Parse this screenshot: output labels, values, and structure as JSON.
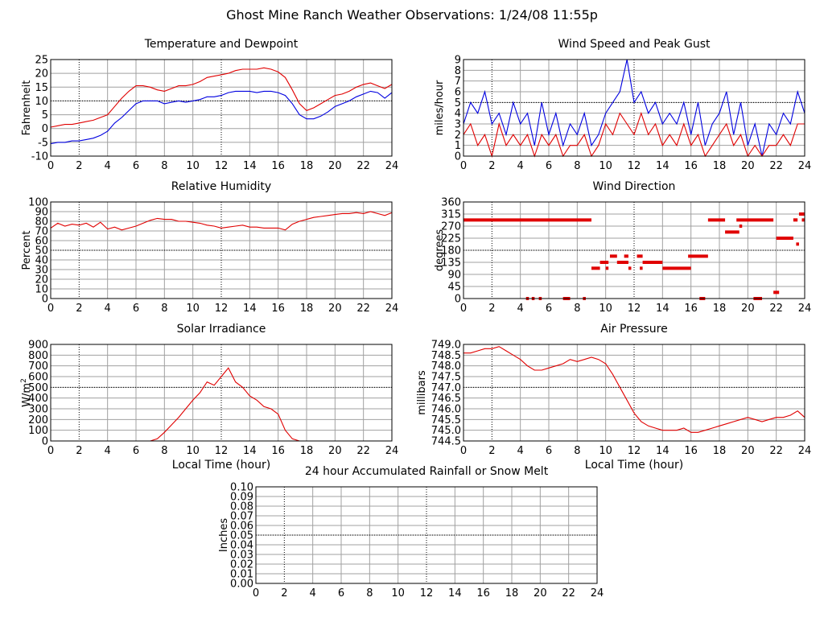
{
  "page_title": "Ghost Mine Ranch Weather Observations: 1/24/08 11:55p",
  "colors": {
    "red": "#e00000",
    "blue": "#0000e0",
    "grid": "#a0a0a0",
    "frame": "#000000"
  },
  "chart_data": [
    {
      "id": "temp",
      "type": "line",
      "title": "Temperature and Dewpoint",
      "ylabel": "Fahrenheit",
      "xlabel": "",
      "xlim": [
        0,
        24
      ],
      "ylim": [
        -10,
        25
      ],
      "xticks": [
        0,
        2,
        4,
        6,
        8,
        10,
        12,
        14,
        16,
        18,
        20,
        22,
        24
      ],
      "yticks": [
        -10,
        -5,
        0,
        5,
        10,
        15,
        20,
        25
      ],
      "ytick_labels": [
        "-10",
        "-5",
        "0",
        "5",
        "10",
        "15",
        "20",
        "25"
      ],
      "grid": true,
      "series": [
        {
          "color": "red",
          "x": [
            0,
            0.5,
            1,
            1.5,
            2,
            2.5,
            3,
            3.5,
            4,
            4.5,
            5,
            5.5,
            6,
            6.5,
            7,
            7.5,
            8,
            8.5,
            9,
            9.5,
            10,
            10.5,
            11,
            11.5,
            12,
            12.5,
            13,
            13.5,
            14,
            14.5,
            15,
            15.5,
            16,
            16.5,
            17,
            17.5,
            18,
            18.5,
            19,
            19.5,
            20,
            20.5,
            21,
            21.5,
            22,
            22.5,
            23,
            23.5,
            24
          ],
          "values": [
            0.5,
            1,
            1.5,
            1.5,
            2,
            2.5,
            3,
            4,
            5,
            8,
            11,
            13.5,
            15.5,
            15.5,
            15,
            14,
            13.5,
            14.5,
            15.5,
            15.5,
            16,
            17,
            18.5,
            19,
            19.5,
            20,
            21,
            21.5,
            21.5,
            21.5,
            22,
            21.5,
            20.5,
            18.5,
            14,
            9,
            6.5,
            7.5,
            9,
            10.5,
            12,
            12.5,
            13.5,
            15,
            16,
            16.5,
            15.5,
            14.5,
            16
          ]
        },
        {
          "color": "blue",
          "x": [
            0,
            0.5,
            1,
            1.5,
            2,
            2.5,
            3,
            3.5,
            4,
            4.5,
            5,
            5.5,
            6,
            6.5,
            7,
            7.5,
            8,
            8.5,
            9,
            9.5,
            10,
            10.5,
            11,
            11.5,
            12,
            12.5,
            13,
            13.5,
            14,
            14.5,
            15,
            15.5,
            16,
            16.5,
            17,
            17.5,
            18,
            18.5,
            19,
            19.5,
            20,
            20.5,
            21,
            21.5,
            22,
            22.5,
            23,
            23.5,
            24
          ],
          "values": [
            -5.5,
            -5,
            -5,
            -4.5,
            -4.5,
            -4,
            -3.5,
            -2.5,
            -1,
            2,
            4,
            6.5,
            9,
            10,
            10,
            10,
            9,
            9.5,
            10,
            9.5,
            10,
            10.5,
            11.5,
            11.5,
            12,
            13,
            13.5,
            13.5,
            13.5,
            13,
            13.5,
            13.5,
            13,
            12,
            9,
            5,
            3.5,
            3.5,
            4.5,
            6,
            8,
            9,
            10,
            11.5,
            12.5,
            13.5,
            13,
            11,
            13
          ]
        }
      ]
    },
    {
      "id": "wind",
      "type": "line",
      "title": "Wind Speed and Peak Gust",
      "ylabel": "miles/hour",
      "xlabel": "",
      "xlim": [
        0,
        24
      ],
      "ylim": [
        0,
        9
      ],
      "xticks": [
        0,
        2,
        4,
        6,
        8,
        10,
        12,
        14,
        16,
        18,
        20,
        22,
        24
      ],
      "yticks": [
        0,
        1,
        2,
        3,
        4,
        5,
        6,
        7,
        8,
        9
      ],
      "ytick_labels": [
        "0",
        "1",
        "2",
        "3",
        "4",
        "5",
        "6",
        "7",
        "8",
        "9"
      ],
      "grid": true,
      "series": [
        {
          "color": "blue",
          "x": [
            0,
            0.5,
            1,
            1.5,
            2,
            2.5,
            3,
            3.5,
            4,
            4.5,
            5,
            5.5,
            6,
            6.5,
            7,
            7.5,
            8,
            8.5,
            9,
            9.5,
            10,
            10.5,
            11,
            11.5,
            12,
            12.5,
            13,
            13.5,
            14,
            14.5,
            15,
            15.5,
            16,
            16.5,
            17,
            17.5,
            18,
            18.5,
            19,
            19.5,
            20,
            20.5,
            21,
            21.5,
            22,
            22.5,
            23,
            23.5,
            24
          ],
          "values": [
            3,
            5,
            4,
            6,
            3,
            4,
            2,
            5,
            3,
            4,
            1,
            5,
            2,
            4,
            1,
            3,
            2,
            4,
            1,
            2,
            4,
            5,
            6,
            9,
            5,
            6,
            4,
            5,
            3,
            4,
            3,
            5,
            2,
            5,
            1,
            3,
            4,
            6,
            2,
            5,
            1,
            3,
            0,
            3,
            2,
            4,
            3,
            6,
            4
          ]
        },
        {
          "color": "red",
          "x": [
            0,
            0.5,
            1,
            1.5,
            2,
            2.5,
            3,
            3.5,
            4,
            4.5,
            5,
            5.5,
            6,
            6.5,
            7,
            7.5,
            8,
            8.5,
            9,
            9.5,
            10,
            10.5,
            11,
            11.5,
            12,
            12.5,
            13,
            13.5,
            14,
            14.5,
            15,
            15.5,
            16,
            16.5,
            17,
            17.5,
            18,
            18.5,
            19,
            19.5,
            20,
            20.5,
            21,
            21.5,
            22,
            22.5,
            23,
            23.5,
            24
          ],
          "values": [
            2,
            3,
            1,
            2,
            0,
            3,
            1,
            2,
            1,
            2,
            0,
            2,
            1,
            2,
            0,
            1,
            1,
            2,
            0,
            1,
            3,
            2,
            4,
            3,
            2,
            4,
            2,
            3,
            1,
            2,
            1,
            3,
            1,
            2,
            0,
            1,
            2,
            3,
            1,
            2,
            0,
            1,
            0,
            1,
            1,
            2,
            1,
            3,
            3
          ]
        }
      ]
    },
    {
      "id": "rh",
      "type": "line",
      "title": "Relative Humidity",
      "ylabel": "Percent",
      "xlabel": "",
      "xlim": [
        0,
        24
      ],
      "ylim": [
        0,
        100
      ],
      "xticks": [
        0,
        2,
        4,
        6,
        8,
        10,
        12,
        14,
        16,
        18,
        20,
        22,
        24
      ],
      "yticks": [
        0,
        10,
        20,
        30,
        40,
        50,
        60,
        70,
        80,
        90,
        100
      ],
      "ytick_labels": [
        "0",
        "10",
        "20",
        "30",
        "40",
        "50",
        "60",
        "70",
        "80",
        "90",
        "100"
      ],
      "grid": true,
      "series": [
        {
          "color": "red",
          "x": [
            0,
            0.5,
            1,
            1.5,
            2,
            2.5,
            3,
            3.5,
            4,
            4.5,
            5,
            5.5,
            6,
            6.5,
            7,
            7.5,
            8,
            8.5,
            9,
            9.5,
            10,
            10.5,
            11,
            11.5,
            12,
            12.5,
            13,
            13.5,
            14,
            14.5,
            15,
            15.5,
            16,
            16.5,
            17,
            17.5,
            18,
            18.5,
            19,
            19.5,
            20,
            20.5,
            21,
            21.5,
            22,
            22.5,
            23,
            23.5,
            24
          ],
          "values": [
            73,
            78,
            75,
            77,
            76,
            78,
            74,
            79,
            72,
            74,
            71,
            73,
            75,
            78,
            81,
            83,
            82,
            82,
            80,
            80,
            79,
            78,
            76,
            75,
            73,
            74,
            75,
            76,
            74,
            74,
            73,
            73,
            73,
            71,
            77,
            80,
            82,
            84,
            85,
            86,
            87,
            88,
            88,
            89,
            88,
            90,
            88,
            86,
            89
          ]
        }
      ]
    },
    {
      "id": "wdir",
      "type": "scatter",
      "title": "Wind Direction",
      "ylabel": "degrees",
      "xlabel": "",
      "xlim": [
        0,
        24
      ],
      "ylim": [
        0,
        360
      ],
      "xticks": [
        0,
        2,
        4,
        6,
        8,
        10,
        12,
        14,
        16,
        18,
        20,
        22,
        24
      ],
      "yticks": [
        0,
        45,
        90,
        135,
        180,
        225,
        270,
        315,
        360
      ],
      "ytick_labels": [
        "0",
        "45",
        "90",
        "135",
        "180",
        "225",
        "270",
        "315",
        "360"
      ],
      "grid": true,
      "segments": [
        {
          "x0": 0,
          "x1": 9,
          "y": 293
        },
        {
          "x0": 4.4,
          "x1": 4.6,
          "y": 0
        },
        {
          "x0": 4.8,
          "x1": 5,
          "y": 0
        },
        {
          "x0": 5.3,
          "x1": 5.5,
          "y": 0
        },
        {
          "x0": 7,
          "x1": 7.5,
          "y": 0
        },
        {
          "x0": 8.4,
          "x1": 8.6,
          "y": 0
        },
        {
          "x0": 9,
          "x1": 9.6,
          "y": 113
        },
        {
          "x0": 9.6,
          "x1": 10.2,
          "y": 135
        },
        {
          "x0": 10,
          "x1": 10.2,
          "y": 113
        },
        {
          "x0": 10.3,
          "x1": 10.8,
          "y": 158
        },
        {
          "x0": 10.8,
          "x1": 11.6,
          "y": 135
        },
        {
          "x0": 11.3,
          "x1": 11.6,
          "y": 158
        },
        {
          "x0": 11.6,
          "x1": 11.8,
          "y": 113
        },
        {
          "x0": 12.2,
          "x1": 12.6,
          "y": 158
        },
        {
          "x0": 12.4,
          "x1": 12.6,
          "y": 113
        },
        {
          "x0": 12.6,
          "x1": 14,
          "y": 135
        },
        {
          "x0": 14,
          "x1": 16,
          "y": 113
        },
        {
          "x0": 15.8,
          "x1": 17.2,
          "y": 158
        },
        {
          "x0": 16.6,
          "x1": 17,
          "y": 0
        },
        {
          "x0": 17.2,
          "x1": 18.4,
          "y": 293
        },
        {
          "x0": 18.4,
          "x1": 19.4,
          "y": 248
        },
        {
          "x0": 19.4,
          "x1": 19.6,
          "y": 270
        },
        {
          "x0": 19.2,
          "x1": 21.8,
          "y": 293
        },
        {
          "x0": 20.4,
          "x1": 21,
          "y": 0
        },
        {
          "x0": 21.8,
          "x1": 22.2,
          "y": 23
        },
        {
          "x0": 22,
          "x1": 23.2,
          "y": 225
        },
        {
          "x0": 23.2,
          "x1": 23.5,
          "y": 293
        },
        {
          "x0": 23.4,
          "x1": 23.6,
          "y": 203
        },
        {
          "x0": 23.6,
          "x1": 24,
          "y": 315
        },
        {
          "x0": 23.8,
          "x1": 24,
          "y": 293
        }
      ]
    },
    {
      "id": "solar",
      "type": "line",
      "title": "Solar Irradiance",
      "ylabel": "W/m",
      "ylabel_sup": "2",
      "xlabel": "Local Time (hour)",
      "xlim": [
        0,
        24
      ],
      "ylim": [
        0,
        900
      ],
      "xticks": [
        0,
        2,
        4,
        6,
        8,
        10,
        12,
        14,
        16,
        18,
        20,
        22,
        24
      ],
      "yticks": [
        0,
        100,
        200,
        300,
        400,
        500,
        600,
        700,
        800,
        900
      ],
      "ytick_labels": [
        "0",
        "100",
        "200",
        "300",
        "400",
        "500",
        "600",
        "700",
        "800",
        "900"
      ],
      "grid": true,
      "series": [
        {
          "color": "red",
          "x": [
            0,
            7,
            7.5,
            8,
            8.5,
            9,
            9.5,
            10,
            10.5,
            11,
            11.5,
            12,
            12.5,
            13,
            13.5,
            14,
            14.5,
            15,
            15.5,
            16,
            16.5,
            17,
            17.5,
            18,
            24
          ],
          "values": [
            0,
            0,
            20,
            80,
            150,
            220,
            300,
            380,
            450,
            550,
            520,
            600,
            680,
            550,
            500,
            420,
            380,
            320,
            300,
            250,
            100,
            20,
            0,
            0,
            0
          ]
        }
      ]
    },
    {
      "id": "pressure",
      "type": "line",
      "title": "Air Pressure",
      "ylabel": "millibars",
      "xlabel": "Local Time (hour)",
      "xlim": [
        0,
        24
      ],
      "ylim": [
        744.5,
        749
      ],
      "xticks": [
        0,
        2,
        4,
        6,
        8,
        10,
        12,
        14,
        16,
        18,
        20,
        22,
        24
      ],
      "yticks": [
        744.5,
        745,
        745.5,
        746,
        746.5,
        747,
        747.5,
        748,
        748.5,
        749
      ],
      "ytick_labels": [
        "744.5",
        "745.0",
        "745.5",
        "746.0",
        "746.5",
        "747.0",
        "747.5",
        "748.0",
        "748.5",
        "749.0"
      ],
      "grid": true,
      "series": [
        {
          "color": "red",
          "x": [
            0,
            0.5,
            1,
            1.5,
            2,
            2.5,
            3,
            3.5,
            4,
            4.5,
            5,
            5.5,
            6,
            6.5,
            7,
            7.5,
            8,
            8.5,
            9,
            9.5,
            10,
            10.5,
            11,
            11.5,
            12,
            12.5,
            13,
            13.5,
            14,
            14.5,
            15,
            15.5,
            16,
            16.5,
            17,
            17.5,
            18,
            18.5,
            19,
            19.5,
            20,
            20.5,
            21,
            21.5,
            22,
            22.5,
            23,
            23.5,
            24
          ],
          "values": [
            748.6,
            748.6,
            748.7,
            748.8,
            748.8,
            748.9,
            748.7,
            748.5,
            748.3,
            748,
            747.8,
            747.8,
            747.9,
            748,
            748.1,
            748.3,
            748.2,
            748.3,
            748.4,
            748.3,
            748.1,
            747.6,
            747,
            746.4,
            745.8,
            745.4,
            745.2,
            745.1,
            745,
            745,
            745,
            745.1,
            744.9,
            744.9,
            745,
            745.1,
            745.2,
            745.3,
            745.4,
            745.5,
            745.6,
            745.5,
            745.4,
            745.5,
            745.6,
            745.6,
            745.7,
            745.9,
            745.6
          ]
        }
      ]
    },
    {
      "id": "rain",
      "type": "line",
      "title": "24 hour Accumulated Rainfall or Snow Melt",
      "ylabel": "Inches",
      "xlabel": "",
      "xlim": [
        0,
        24
      ],
      "ylim": [
        0,
        0.1
      ],
      "xticks": [
        0,
        2,
        4,
        6,
        8,
        10,
        12,
        14,
        16,
        18,
        20,
        22,
        24
      ],
      "yticks": [
        0,
        0.01,
        0.02,
        0.03,
        0.04,
        0.05,
        0.06,
        0.07,
        0.08,
        0.09,
        0.1
      ],
      "ytick_labels": [
        "0.00",
        "0.01",
        "0.02",
        "0.03",
        "0.04",
        "0.05",
        "0.06",
        "0.07",
        "0.08",
        "0.09",
        "0.10"
      ],
      "grid": true,
      "series": [
        {
          "color": "red",
          "x": [
            0,
            24
          ],
          "values": [
            0,
            0
          ]
        }
      ]
    }
  ]
}
